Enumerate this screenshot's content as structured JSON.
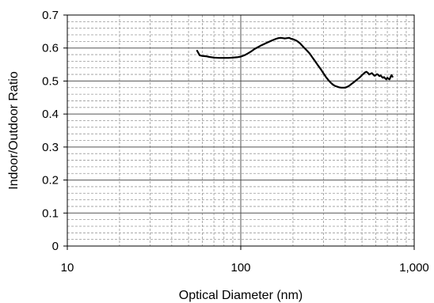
{
  "chart_data": {
    "type": "line",
    "title": "",
    "xlabel": "Optical Diameter (nm)",
    "ylabel": "Indoor/Outdoor Ratio",
    "x_scale": "log",
    "xlim": [
      10,
      1000
    ],
    "ylim": [
      0,
      0.7
    ],
    "x_ticks": [
      10,
      100,
      1000
    ],
    "x_tick_labels": [
      "10",
      "100",
      "1,000"
    ],
    "y_ticks": [
      0,
      0.1,
      0.2,
      0.3,
      0.4,
      0.5,
      0.6,
      0.7
    ],
    "y_tick_labels": [
      "0",
      "0.1",
      "0.2",
      "0.3",
      "0.4",
      "0.5",
      "0.6",
      "0.7"
    ],
    "grid": true,
    "minor_grid": true,
    "legend": "none",
    "series": [
      {
        "color": "#000000",
        "x": [
          56,
          57,
          58,
          60,
          63,
          66,
          70,
          75,
          80,
          85,
          90,
          95,
          100,
          105,
          110,
          115,
          120,
          125,
          130,
          140,
          150,
          160,
          165,
          170,
          175,
          180,
          185,
          190,
          195,
          200,
          210,
          220,
          230,
          240,
          250,
          260,
          270,
          280,
          290,
          300,
          310,
          320,
          330,
          340,
          350,
          360,
          370,
          380,
          390,
          400,
          410,
          420,
          430,
          440,
          450,
          460,
          470,
          480,
          490,
          500,
          510,
          520,
          530,
          540,
          550,
          560,
          570,
          580,
          590,
          600,
          610,
          620,
          630,
          640,
          650,
          660,
          670,
          680,
          690,
          700,
          710,
          720,
          730,
          740,
          750
        ],
        "y": [
          0.592,
          0.585,
          0.578,
          0.576,
          0.575,
          0.573,
          0.571,
          0.57,
          0.57,
          0.57,
          0.571,
          0.572,
          0.574,
          0.578,
          0.584,
          0.59,
          0.597,
          0.602,
          0.607,
          0.615,
          0.622,
          0.628,
          0.63,
          0.631,
          0.63,
          0.629,
          0.63,
          0.631,
          0.628,
          0.627,
          0.622,
          0.614,
          0.603,
          0.593,
          0.583,
          0.57,
          0.558,
          0.546,
          0.535,
          0.523,
          0.512,
          0.503,
          0.495,
          0.489,
          0.485,
          0.483,
          0.481,
          0.48,
          0.48,
          0.48,
          0.482,
          0.485,
          0.489,
          0.493,
          0.497,
          0.501,
          0.505,
          0.509,
          0.513,
          0.518,
          0.522,
          0.526,
          0.528,
          0.525,
          0.52,
          0.522,
          0.524,
          0.52,
          0.516,
          0.518,
          0.521,
          0.519,
          0.515,
          0.517,
          0.513,
          0.51,
          0.512,
          0.508,
          0.505,
          0.51,
          0.507,
          0.505,
          0.512,
          0.518,
          0.513
        ]
      }
    ]
  }
}
